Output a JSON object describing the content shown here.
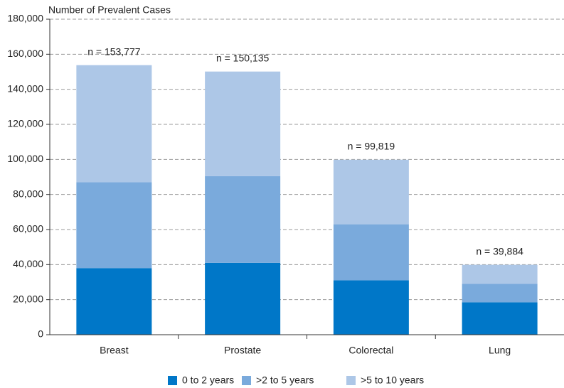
{
  "chart_data": {
    "type": "stacked_bar",
    "y_axis_label": "Number of Prevalent Cases",
    "categories": [
      "Breast",
      "Prostate",
      "Colorectal",
      "Lung"
    ],
    "series": [
      {
        "name": "0 to 2 years",
        "color": "#0077c8",
        "values": [
          38000,
          41000,
          31000,
          18500
        ]
      },
      {
        "name": ">2 to 5 years",
        "color": "#7aaadc",
        "values": [
          49000,
          49500,
          32000,
          10500
        ]
      },
      {
        "name": ">5 to 10 years",
        "color": "#adc7e7",
        "values": [
          66777,
          59635,
          36819,
          10884
        ]
      }
    ],
    "annotations": [
      "n = 153,777",
      "n = 150,135",
      "n = 99,819",
      "n = 39,884"
    ],
    "ylim": [
      0,
      180000
    ],
    "yticks": [
      0,
      {
        "value": 20000,
        "label": "20,000"
      },
      {
        "value": 40000,
        "label": "40,000"
      },
      {
        "value": 60000,
        "label": "60,000"
      },
      {
        "value": 80000,
        "label": "80,000"
      },
      {
        "value": 100000,
        "label": "100,000"
      },
      {
        "value": 120000,
        "label": "120,000"
      },
      {
        "value": 140000,
        "label": "140,000"
      },
      {
        "value": 160000,
        "label": "160,000"
      },
      {
        "value": 180000,
        "label": "180,000"
      }
    ],
    "grid": true
  }
}
